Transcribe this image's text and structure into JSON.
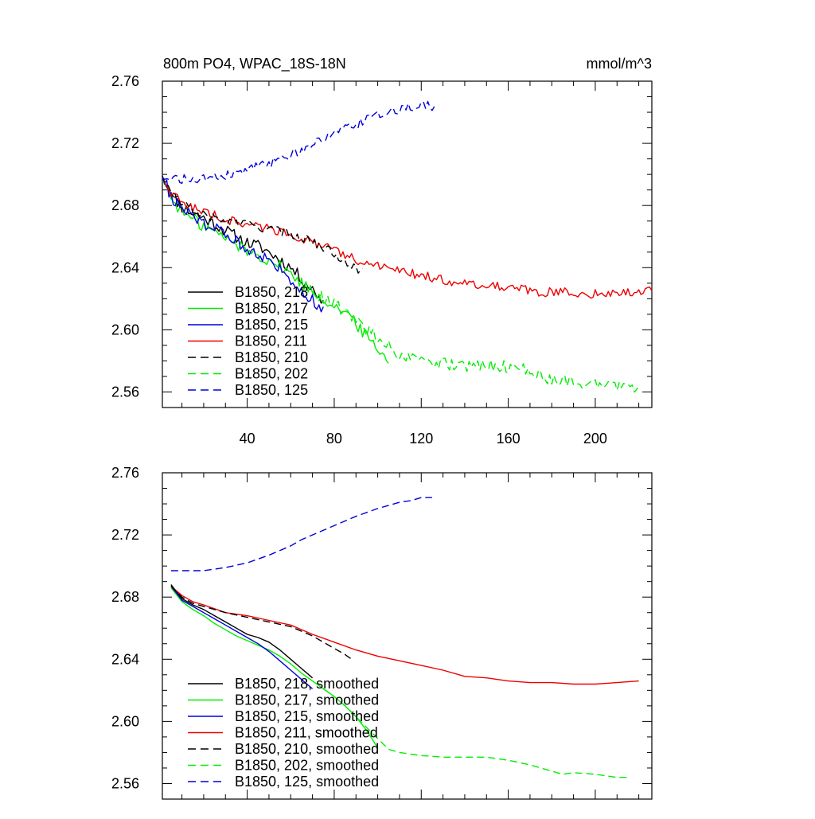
{
  "chart_data": [
    {
      "type": "line",
      "title": "800m PO4, WPAC_18S-18N",
      "units": "mmol/m^3",
      "xlabel": "",
      "ylabel": "",
      "xlim": [
        1,
        226
      ],
      "ylim": [
        2.55,
        2.76
      ],
      "x_ticks": [
        40,
        80,
        120,
        160,
        200
      ],
      "x_tick_labels": [
        "40",
        "80",
        "120",
        "160",
        "200"
      ],
      "y_ticks": [
        2.56,
        2.6,
        2.64,
        2.68,
        2.72,
        2.76
      ],
      "y_tick_labels": [
        "2.56",
        "2.60",
        "2.64",
        "2.68",
        "2.72",
        "2.76"
      ],
      "grid": false,
      "legend_position": "bottom-left",
      "series": [
        {
          "name": "B1850, 218",
          "color": "#000000",
          "dash": "solid",
          "x": [
            1,
            5,
            10,
            15,
            20,
            25,
            30,
            35,
            40,
            45,
            50,
            55,
            60,
            65,
            70,
            75
          ],
          "y": [
            2.699,
            2.688,
            2.679,
            2.675,
            2.672,
            2.668,
            2.664,
            2.66,
            2.656,
            2.654,
            2.65,
            2.645,
            2.64,
            2.633,
            2.626,
            2.618
          ],
          "noise": 0.004
        },
        {
          "name": "B1850, 217",
          "color": "#00ee00",
          "dash": "solid",
          "x": [
            1,
            5,
            10,
            15,
            20,
            25,
            30,
            35,
            40,
            45,
            50,
            55,
            60,
            65,
            70,
            75,
            80,
            85,
            90,
            95,
            100,
            105
          ],
          "y": [
            2.699,
            2.685,
            2.676,
            2.671,
            2.667,
            2.663,
            2.659,
            2.655,
            2.651,
            2.648,
            2.645,
            2.641,
            2.636,
            2.63,
            2.625,
            2.62,
            2.616,
            2.611,
            2.604,
            2.596,
            2.588,
            2.58
          ],
          "noise": 0.004
        },
        {
          "name": "B1850, 215",
          "color": "#0000dd",
          "dash": "solid",
          "x": [
            1,
            5,
            10,
            15,
            20,
            25,
            30,
            35,
            40,
            45,
            50,
            55,
            60,
            65,
            70,
            75
          ],
          "y": [
            2.699,
            2.686,
            2.677,
            2.673,
            2.669,
            2.665,
            2.661,
            2.657,
            2.653,
            2.649,
            2.645,
            2.639,
            2.633,
            2.626,
            2.619,
            2.612
          ],
          "noise": 0.004
        },
        {
          "name": "B1850, 211",
          "color": "#ee0000",
          "dash": "solid",
          "x": [
            1,
            5,
            10,
            15,
            20,
            30,
            40,
            50,
            60,
            70,
            80,
            90,
            100,
            110,
            120,
            130,
            140,
            150,
            160,
            170,
            180,
            190,
            200,
            210,
            220,
            226
          ],
          "y": [
            2.699,
            2.688,
            2.682,
            2.679,
            2.676,
            2.671,
            2.668,
            2.665,
            2.662,
            2.656,
            2.651,
            2.645,
            2.641,
            2.638,
            2.635,
            2.632,
            2.63,
            2.629,
            2.627,
            2.625,
            2.624,
            2.624,
            2.623,
            2.624,
            2.625,
            2.625
          ],
          "noise": 0.003
        },
        {
          "name": "B1850, 210",
          "color": "#000000",
          "dash": "dash",
          "x": [
            1,
            5,
            10,
            15,
            20,
            30,
            40,
            50,
            60,
            70,
            80,
            85,
            90,
            93
          ],
          "y": [
            2.699,
            2.688,
            2.681,
            2.677,
            2.674,
            2.67,
            2.668,
            2.665,
            2.662,
            2.657,
            2.649,
            2.645,
            2.64,
            2.637
          ],
          "noise": 0.003
        },
        {
          "name": "B1850, 202",
          "color": "#00ee00",
          "dash": "dash",
          "x": [
            70,
            80,
            90,
            100,
            105,
            110,
            120,
            130,
            140,
            150,
            160,
            170,
            180,
            190,
            200,
            210,
            215,
            220
          ],
          "y": [
            2.625,
            2.617,
            2.605,
            2.595,
            2.59,
            2.583,
            2.579,
            2.578,
            2.577,
            2.577,
            2.576,
            2.574,
            2.568,
            2.567,
            2.565,
            2.563,
            2.562,
            2.565
          ],
          "noise": 0.004
        },
        {
          "name": "B1850, 125",
          "color": "#0000dd",
          "dash": "dash",
          "x": [
            1,
            10,
            20,
            30,
            40,
            50,
            60,
            70,
            80,
            90,
            100,
            110,
            120,
            126
          ],
          "y": [
            2.698,
            2.697,
            2.697,
            2.699,
            2.703,
            2.707,
            2.713,
            2.719,
            2.726,
            2.732,
            2.738,
            2.742,
            2.744,
            2.744
          ],
          "noise": 0.003
        }
      ]
    },
    {
      "type": "line",
      "title": "",
      "xlabel": "",
      "ylabel": "",
      "xlim": [
        1,
        226
      ],
      "ylim": [
        2.55,
        2.76
      ],
      "x_ticks": [
        40,
        80,
        120,
        160,
        200
      ],
      "x_tick_labels": [],
      "y_ticks": [
        2.56,
        2.6,
        2.64,
        2.68,
        2.72,
        2.76
      ],
      "y_tick_labels": [
        "2.56",
        "2.60",
        "2.64",
        "2.68",
        "2.72",
        "2.76"
      ],
      "grid": false,
      "legend_position": "bottom-left",
      "series": [
        {
          "name": "B1850, 218, smoothed",
          "color": "#000000",
          "dash": "solid",
          "x": [
            5,
            10,
            15,
            20,
            25,
            30,
            35,
            40,
            45,
            50,
            55,
            60,
            65,
            70
          ],
          "y": [
            2.688,
            2.679,
            2.675,
            2.672,
            2.668,
            2.664,
            2.66,
            2.656,
            2.654,
            2.651,
            2.646,
            2.64,
            2.634,
            2.628
          ]
        },
        {
          "name": "B1850, 217, smoothed",
          "color": "#00ee00",
          "dash": "solid",
          "x": [
            5,
            10,
            15,
            20,
            25,
            30,
            35,
            40,
            45,
            50,
            55,
            60,
            65,
            70,
            75,
            80,
            85,
            90,
            95,
            100
          ],
          "y": [
            2.686,
            2.677,
            2.672,
            2.668,
            2.663,
            2.659,
            2.655,
            2.652,
            2.649,
            2.646,
            2.642,
            2.637,
            2.631,
            2.626,
            2.621,
            2.616,
            2.61,
            2.603,
            2.594,
            2.583
          ]
        },
        {
          "name": "B1850, 215, smoothed",
          "color": "#0000dd",
          "dash": "solid",
          "x": [
            5,
            10,
            15,
            20,
            25,
            30,
            35,
            40,
            45,
            50,
            55,
            60,
            65,
            70
          ],
          "y": [
            2.687,
            2.678,
            2.674,
            2.67,
            2.666,
            2.662,
            2.658,
            2.654,
            2.65,
            2.645,
            2.639,
            2.633,
            2.627,
            2.621
          ]
        },
        {
          "name": "B1850, 211, smoothed",
          "color": "#ee0000",
          "dash": "solid",
          "x": [
            5,
            10,
            15,
            20,
            30,
            40,
            50,
            60,
            70,
            80,
            90,
            100,
            110,
            120,
            130,
            140,
            150,
            160,
            170,
            180,
            190,
            200,
            210,
            220
          ],
          "y": [
            2.687,
            2.681,
            2.677,
            2.675,
            2.67,
            2.668,
            2.665,
            2.662,
            2.656,
            2.651,
            2.646,
            2.642,
            2.639,
            2.636,
            2.633,
            2.629,
            2.628,
            2.626,
            2.625,
            2.625,
            2.624,
            2.624,
            2.625,
            2.626
          ]
        },
        {
          "name": "B1850, 210, smoothed",
          "color": "#000000",
          "dash": "dash",
          "x": [
            5,
            10,
            15,
            20,
            30,
            40,
            50,
            60,
            70,
            80,
            85,
            88
          ],
          "y": [
            2.687,
            2.68,
            2.676,
            2.674,
            2.67,
            2.667,
            2.664,
            2.661,
            2.655,
            2.647,
            2.643,
            2.64
          ]
        },
        {
          "name": "B1850, 202, smoothed",
          "color": "#00ee00",
          "dash": "dash",
          "x": [
            75,
            80,
            85,
            90,
            95,
            100,
            105,
            110,
            115,
            120,
            130,
            140,
            150,
            160,
            170,
            180,
            185,
            190,
            200,
            210,
            215
          ],
          "y": [
            2.621,
            2.616,
            2.61,
            2.603,
            2.596,
            2.589,
            2.582,
            2.58,
            2.579,
            2.578,
            2.577,
            2.577,
            2.577,
            2.575,
            2.572,
            2.568,
            2.566,
            2.567,
            2.566,
            2.564,
            2.564
          ]
        },
        {
          "name": "B1850, 125, smoothed",
          "color": "#0000dd",
          "dash": "dash",
          "x": [
            5,
            10,
            20,
            30,
            40,
            50,
            60,
            65,
            70,
            80,
            90,
            100,
            110,
            115,
            120,
            125
          ],
          "y": [
            2.697,
            2.697,
            2.697,
            2.699,
            2.702,
            2.707,
            2.713,
            2.717,
            2.72,
            2.726,
            2.732,
            2.737,
            2.741,
            2.742,
            2.744,
            2.744
          ]
        }
      ]
    }
  ]
}
